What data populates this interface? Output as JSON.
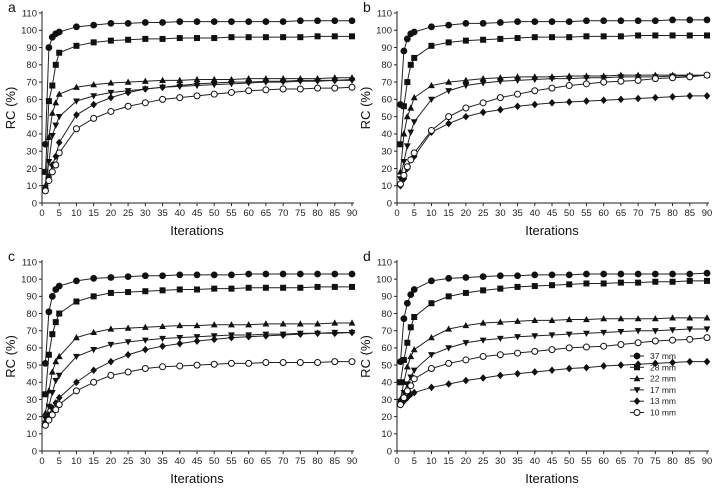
{
  "chart_data": {
    "legend": {
      "panel": "d",
      "position": "bottom-right",
      "entries": [
        {
          "label": "37 mm",
          "marker": "circle-filled"
        },
        {
          "label": "28 mm",
          "marker": "square-filled"
        },
        {
          "label": "22 mm",
          "marker": "triangle-up-filled"
        },
        {
          "label": "17 mm",
          "marker": "triangle-down-filled"
        },
        {
          "label": "13 mm",
          "marker": "diamond-filled"
        },
        {
          "label": "10 mm",
          "marker": "circle-open"
        }
      ]
    },
    "panels": [
      {
        "letter": "a",
        "type": "line",
        "xlabel": "Iterations",
        "ylabel": "RC (%)",
        "xlim": [
          0,
          90
        ],
        "ylim": [
          0,
          110
        ],
        "xticks": [
          0,
          5,
          10,
          15,
          20,
          25,
          30,
          35,
          40,
          45,
          50,
          55,
          60,
          65,
          70,
          75,
          80,
          85,
          90
        ],
        "yticks": [
          0,
          10,
          20,
          30,
          40,
          50,
          60,
          70,
          80,
          90,
          100,
          110
        ],
        "x": [
          1,
          2,
          3,
          4,
          5,
          10,
          15,
          20,
          25,
          30,
          35,
          40,
          45,
          50,
          55,
          60,
          65,
          70,
          75,
          80,
          85,
          90
        ],
        "series": [
          {
            "name": "37 mm",
            "values": [
              34,
              90,
              96,
              98,
              99,
              102,
              103,
              104,
              104,
              104.5,
              104.5,
              105,
              105,
              105,
              105,
              105,
              105,
              105,
              105.5,
              105.5,
              105.5,
              105.5
            ]
          },
          {
            "name": "28 mm",
            "values": [
              18,
              59,
              68,
              80,
              87,
              91,
              93,
              94,
              94.5,
              95,
              95,
              95.5,
              95.5,
              95.5,
              96,
              96,
              96,
              96,
              96,
              96.5,
              96.5,
              96.5
            ]
          },
          {
            "name": "22 mm",
            "values": [
              10,
              38,
              52,
              58,
              63,
              67,
              68.5,
              69.5,
              70,
              70.5,
              71,
              71,
              71.5,
              71.5,
              71.5,
              72,
              72,
              72,
              72,
              72,
              72.5,
              72.5
            ]
          },
          {
            "name": "17 mm",
            "values": [
              9,
              24,
              39,
              45,
              50,
              59,
              62,
              64,
              65,
              66,
              67,
              67.5,
              68,
              68.5,
              69,
              69.5,
              70,
              70,
              70.5,
              70.5,
              71,
              71
            ]
          },
          {
            "name": "13 mm",
            "values": [
              8,
              15,
              22,
              27,
              35,
              51,
              57,
              61,
              64,
              66,
              67,
              68,
              69,
              69.5,
              70,
              70,
              70.5,
              70.5,
              71,
              71,
              71,
              71.5
            ]
          },
          {
            "name": "10 mm",
            "values": [
              7,
              13,
              18,
              22,
              29,
              43,
              49,
              53,
              56,
              58,
              60,
              61,
              62,
              63,
              64,
              65,
              65.5,
              66,
              66,
              66.5,
              66.5,
              67
            ]
          }
        ]
      },
      {
        "letter": "b",
        "type": "line",
        "xlabel": "Iterations",
        "ylabel": "RC (%)",
        "xlim": [
          0,
          90
        ],
        "ylim": [
          0,
          110
        ],
        "xticks": [
          0,
          5,
          10,
          15,
          20,
          25,
          30,
          35,
          40,
          45,
          50,
          55,
          60,
          65,
          70,
          75,
          80,
          85,
          90
        ],
        "yticks": [
          0,
          10,
          20,
          30,
          40,
          50,
          60,
          70,
          80,
          90,
          100,
          110
        ],
        "x": [
          1,
          2,
          3,
          4,
          5,
          10,
          15,
          20,
          25,
          30,
          35,
          40,
          45,
          50,
          55,
          60,
          65,
          70,
          75,
          80,
          85,
          90
        ],
        "series": [
          {
            "name": "37 mm",
            "values": [
              57,
              88,
              95,
              98,
              99,
              102,
              103,
              104,
              104,
              104.5,
              105,
              105,
              105,
              105,
              105.5,
              105.5,
              105.5,
              105.5,
              105.5,
              106,
              106,
              106
            ]
          },
          {
            "name": "28 mm",
            "values": [
              34,
              56,
              70,
              80,
              84,
              91,
              93,
              94,
              94.5,
              95,
              95.5,
              96,
              96,
              96,
              96.5,
              96.5,
              96.5,
              97,
              97,
              97,
              97,
              97
            ]
          },
          {
            "name": "22 mm",
            "values": [
              18,
              40,
              50,
              55,
              61,
              68,
              70,
              71,
              72,
              72.5,
              73,
              73,
              73,
              73.5,
              73.5,
              73.5,
              74,
              74,
              74,
              74,
              74,
              74
            ]
          },
          {
            "name": "17 mm",
            "values": [
              14,
              24,
              33,
              41,
              47,
              60,
              65,
              68,
              69.5,
              70.5,
              71,
              71.5,
              72,
              72,
              72.5,
              72.5,
              73,
              73,
              73,
              73.5,
              73.5,
              74
            ]
          },
          {
            "name": "13 mm",
            "values": [
              10,
              14,
              20,
              25,
              27,
              41,
              46,
              50,
              52.5,
              54,
              56,
              57,
              58,
              58.5,
              59,
              59.5,
              60,
              60.5,
              61,
              61.5,
              62,
              62
            ]
          },
          {
            "name": "10 mm",
            "values": [
              11,
              16,
              21,
              25,
              29,
              42,
              50,
              55,
              58,
              61,
              63,
              65,
              66.5,
              68,
              69,
              70,
              70.5,
              71,
              72,
              72.5,
              73,
              74
            ]
          }
        ]
      },
      {
        "letter": "c",
        "type": "line",
        "xlabel": "Iterations",
        "ylabel": "RC (%)",
        "xlim": [
          0,
          90
        ],
        "ylim": [
          0,
          110
        ],
        "xticks": [
          0,
          5,
          10,
          15,
          20,
          25,
          30,
          35,
          40,
          45,
          50,
          55,
          60,
          65,
          70,
          75,
          80,
          85,
          90
        ],
        "yticks": [
          0,
          10,
          20,
          30,
          40,
          50,
          60,
          70,
          80,
          90,
          100,
          110
        ],
        "x": [
          1,
          2,
          3,
          4,
          5,
          10,
          15,
          20,
          25,
          30,
          35,
          40,
          45,
          50,
          55,
          60,
          65,
          70,
          75,
          80,
          85,
          90
        ],
        "series": [
          {
            "name": "37 mm",
            "values": [
              51,
              81,
              90,
              94,
              96,
              99,
              100.5,
              101,
              101.5,
              102,
              102,
              102.5,
              102.5,
              102.5,
              102.5,
              103,
              103,
              103,
              103,
              103,
              103,
              103
            ]
          },
          {
            "name": "28 mm",
            "values": [
              33,
              56,
              68,
              75,
              80,
              87,
              90,
              92,
              92.5,
              93,
              93.5,
              94,
              94,
              94.5,
              94.5,
              95,
              95,
              95,
              95,
              95.5,
              95.5,
              95.5
            ]
          },
          {
            "name": "22 mm",
            "values": [
              22,
              35,
              46,
              52,
              55,
              66,
              69,
              71,
              71.5,
              72,
              72.5,
              73,
              73,
              73.5,
              73.5,
              73.5,
              74,
              74,
              74,
              74,
              74.5,
              74.5
            ]
          },
          {
            "name": "17 mm",
            "values": [
              19,
              26,
              34,
              41,
              44,
              55,
              59,
              62,
              63.5,
              64.5,
              65.5,
              66,
              66.5,
              67,
              67.5,
              67.5,
              68,
              68,
              68.5,
              68.5,
              69,
              69
            ]
          },
          {
            "name": "13 mm",
            "values": [
              17,
              21,
              25,
              28,
              31,
              40,
              47,
              52,
              56,
              59,
              61,
              62.5,
              64,
              65,
              66,
              66.5,
              67,
              67.5,
              68,
              68.5,
              68.5,
              69
            ]
          },
          {
            "name": "10 mm",
            "values": [
              15,
              18,
              21,
              24,
              27,
              35,
              40,
              44,
              46,
              48,
              49,
              49.5,
              50,
              50.5,
              51,
              51,
              51.5,
              51.5,
              51.5,
              51.5,
              52,
              52
            ]
          }
        ]
      },
      {
        "letter": "d",
        "type": "line",
        "xlabel": "Iterations",
        "ylabel": "RC (%)",
        "xlim": [
          0,
          90
        ],
        "ylim": [
          0,
          110
        ],
        "xticks": [
          0,
          5,
          10,
          15,
          20,
          25,
          30,
          35,
          40,
          45,
          50,
          55,
          60,
          65,
          70,
          75,
          80,
          85,
          90
        ],
        "yticks": [
          0,
          10,
          20,
          30,
          40,
          50,
          60,
          70,
          80,
          90,
          100,
          110
        ],
        "x": [
          1,
          2,
          3,
          4,
          5,
          10,
          15,
          20,
          25,
          30,
          35,
          40,
          45,
          50,
          55,
          60,
          65,
          70,
          75,
          80,
          85,
          90
        ],
        "series": [
          {
            "name": "37 mm",
            "values": [
              52,
              77,
              86,
              91,
              94,
              99,
              100.5,
              101,
              101.5,
              102,
              102,
              102.5,
              102.5,
              102.5,
              103,
              103,
              103,
              103,
              103,
              103,
              103,
              103.5
            ]
          },
          {
            "name": "28 mm",
            "values": [
              40,
              53,
              63,
              72,
              78,
              86,
              90,
              92,
              93.5,
              94.5,
              95.5,
              96,
              96.5,
              97,
              97.5,
              97.5,
              98,
              98,
              98.5,
              98.5,
              99,
              99
            ]
          },
          {
            "name": "22 mm",
            "values": [
              30,
              40,
              49,
              55,
              59,
              66,
              71,
              73,
              74.5,
              75,
              75.5,
              76,
              76,
              76.5,
              76.5,
              77,
              77,
              77,
              77,
              77.5,
              77.5,
              77.5
            ]
          },
          {
            "name": "17 mm",
            "values": [
              29,
              34,
              39,
              43,
              47,
              56,
              60,
              63,
              64.5,
              65.5,
              66.5,
              67,
              67.5,
              68,
              68.5,
              69,
              69.5,
              70,
              70,
              70.5,
              71,
              71
            ]
          },
          {
            "name": "13 mm",
            "values": [
              27,
              29,
              31,
              33,
              34,
              37,
              39,
              41,
              42.5,
              44,
              45,
              46,
              47,
              48,
              48.5,
              49.5,
              50,
              50.5,
              51,
              51.5,
              52,
              52
            ]
          },
          {
            "name": "10 mm",
            "values": [
              27,
              31,
              35,
              38,
              42,
              48,
              51,
              53,
              55,
              56,
              57,
              58,
              59,
              60,
              60.5,
              61,
              62,
              63,
              64,
              64.5,
              65,
              66
            ]
          }
        ]
      }
    ]
  }
}
